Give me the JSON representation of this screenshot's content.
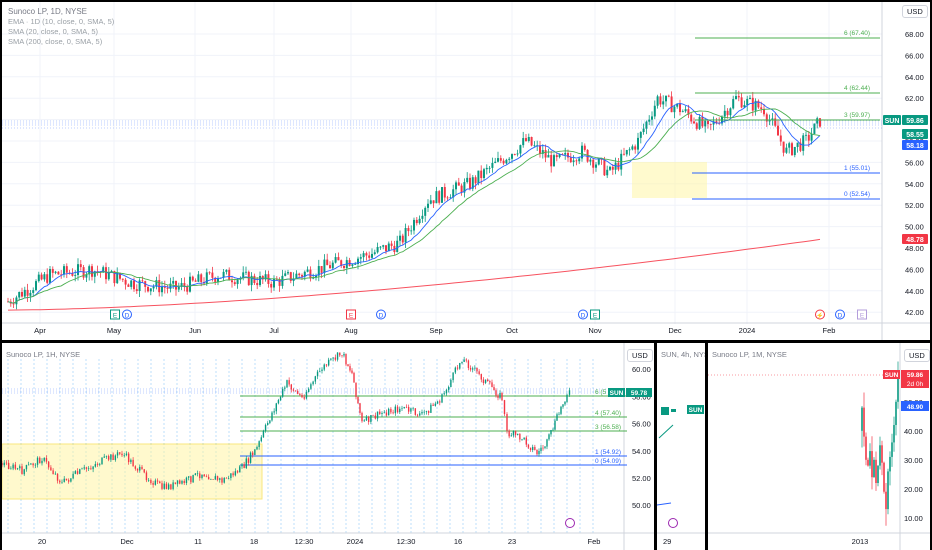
{
  "main_chart": {
    "legend": {
      "title": "Sunoco LP, 1D, NYSE",
      "ema": "EMA · 1D (10, close, 0, SMA, 5)",
      "sma20": "SMA (20, close, 0, SMA, 5)",
      "sma200": "SMA (200, close, 0, SMA, 5)"
    },
    "currency": "USD",
    "price_axis": [
      "68.00",
      "66.00",
      "64.00",
      "62.00",
      "60.00",
      "58.00",
      "56.00",
      "54.00",
      "52.00",
      "50.00",
      "48.00",
      "46.00",
      "44.00",
      "42.00"
    ],
    "time_axis": [
      "Apr",
      "May",
      "Jun",
      "Jul",
      "Aug",
      "Sep",
      "Oct",
      "Nov",
      "Dec",
      "2024",
      "Feb"
    ],
    "fib_levels": [
      {
        "label": "6 (67.40)",
        "color": "#4caf50"
      },
      {
        "label": "4 (62.44)",
        "color": "#4caf50"
      },
      {
        "label": "3 (59.97)",
        "color": "#4caf50"
      },
      {
        "label": "1 (55.01)",
        "color": "#2962ff"
      },
      {
        "label": "0 (52.54)",
        "color": "#2962ff"
      }
    ],
    "price_tags": [
      {
        "text": "SUN",
        "color": "#089981"
      },
      {
        "text": "59.86",
        "color": "#089981"
      },
      {
        "text": "58.55",
        "color": "#089981"
      },
      {
        "text": "58.18",
        "color": "#2962ff"
      },
      {
        "text": "48.78",
        "color": "#f23645"
      }
    ],
    "event_markers": [
      "E",
      "D",
      "E",
      "D",
      "D",
      "D",
      "E",
      "D",
      "E"
    ],
    "colors": {
      "up": "#089981",
      "down": "#f23645",
      "ema": "#2962ff",
      "sma20": "#4caf50",
      "sma200": "#f7525f"
    }
  },
  "chart_1h": {
    "legend": "Sunoco LP, 1H, NYSE",
    "currency": "USD",
    "price_axis": [
      "60.00",
      "58.00",
      "56.00",
      "54.00",
      "52.00",
      "50.00"
    ],
    "time_axis": [
      "20",
      "Dec",
      "11",
      "18",
      "12:30",
      "2024",
      "12:30",
      "16",
      "23",
      "Feb"
    ],
    "fib_levels": [
      {
        "label": "6 (5",
        "color": "#4caf50"
      },
      {
        "label": "4 (57.40)",
        "color": "#4caf50"
      },
      {
        "label": "3 (56.58)",
        "color": "#4caf50"
      },
      {
        "label": "1 (54.92)",
        "color": "#2962ff"
      },
      {
        "label": "0 (54.09)",
        "color": "#2962ff"
      }
    ],
    "price_tags": [
      {
        "text": "SUN"
      },
      {
        "text": "59.78"
      }
    ]
  },
  "chart_4h": {
    "legend": "SUN, 4h, NYSE",
    "price_tag": "SUN",
    "time_axis": [
      "29"
    ]
  },
  "chart_1m": {
    "legend": "Sunoco LP, 1M, NYSE",
    "currency": "USD",
    "price_axis": [
      "50.00",
      "40.00",
      "30.00",
      "20.00",
      "10.00"
    ],
    "time_axis": [
      "2013"
    ],
    "price_tags": [
      {
        "text": "SUN",
        "color": "#f23645"
      },
      {
        "text": "59.86",
        "color": "#f23645"
      },
      {
        "text": "2d 0h",
        "color": "#f23645"
      },
      {
        "text": "48.90",
        "color": "#2962ff"
      }
    ]
  }
}
